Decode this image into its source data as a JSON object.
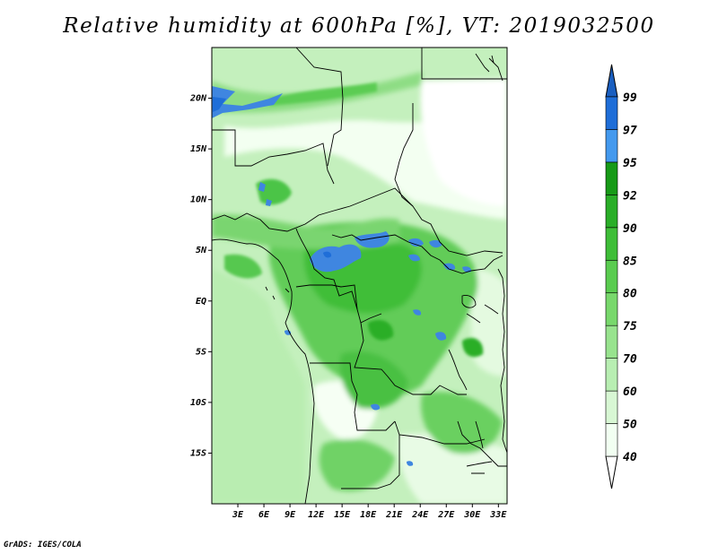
{
  "title": "Relative humidity at 600hPa [%], VT: 2019032500",
  "credit": "GrADS: IGES/COLA",
  "map": {
    "lon_range": [
      0,
      34
    ],
    "lat_range": [
      -20,
      25
    ],
    "lon_ticks": [
      "3E",
      "6E",
      "9E",
      "12E",
      "15E",
      "18E",
      "21E",
      "24E",
      "27E",
      "30E",
      "33E"
    ],
    "lon_tick_values": [
      3,
      6,
      9,
      12,
      15,
      18,
      21,
      24,
      27,
      30,
      33
    ],
    "lat_ticks": [
      "20N",
      "15N",
      "10N",
      "5N",
      "EQ",
      "5S",
      "10S",
      "15S"
    ],
    "lat_tick_values": [
      20,
      15,
      10,
      5,
      0,
      -5,
      -10,
      -15
    ],
    "field": "relative humidity",
    "level": "600hPa",
    "units": "%",
    "valid_time": "2019032500"
  },
  "colorbar": {
    "levels": [
      "40",
      "50",
      "60",
      "70",
      "75",
      "80",
      "85",
      "90",
      "92",
      "95",
      "97",
      "99"
    ],
    "colors": [
      "#f2fff2",
      "#d8f7d4",
      "#b8eeb2",
      "#98e38e",
      "#78d86c",
      "#5acc50",
      "#3fbe38",
      "#2aae28",
      "#179a17",
      "#4499ee",
      "#1f6ed8"
    ],
    "under_color": "#ffffff",
    "over_color": "#1a5fc0"
  }
}
